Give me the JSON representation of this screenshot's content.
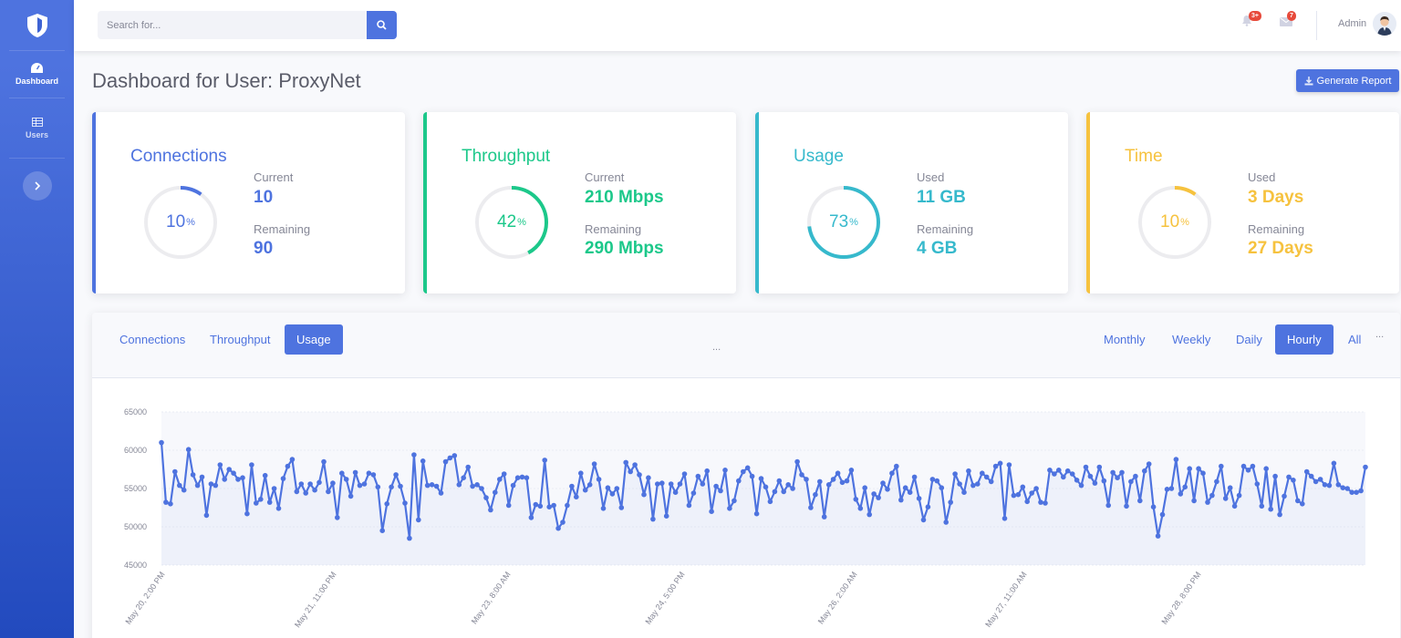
{
  "sidebar": {
    "items": [
      {
        "label": "Dashboard",
        "icon": "dashboard-icon"
      },
      {
        "label": "Users",
        "icon": "table-icon"
      }
    ]
  },
  "topbar": {
    "search_placeholder": "Search for...",
    "alerts_badge": "3+",
    "messages_badge": "7",
    "user_name": "Admin"
  },
  "page": {
    "title": "Dashboard for User: ProxyNet",
    "report_button": "Generate Report"
  },
  "cards": [
    {
      "title": "Connections",
      "percent": "10",
      "label1": "Current",
      "value1": "10",
      "label2": "Remaining",
      "value2": "90",
      "color": "#4e73df",
      "fraction": 0.1
    },
    {
      "title": "Throughput",
      "percent": "42",
      "label1": "Current",
      "value1": "210 Mbps",
      "label2": "Remaining",
      "value2": "290 Mbps",
      "color": "#1cc88a",
      "fraction": 0.42
    },
    {
      "title": "Usage",
      "percent": "73",
      "label1": "Used",
      "value1": "11 GB",
      "label2": "Remaining",
      "value2": "4 GB",
      "color": "#36b9cc",
      "fraction": 0.73
    },
    {
      "title": "Time",
      "percent": "10",
      "label1": "Used",
      "value1": "3 Days",
      "label2": "Remaining",
      "value2": "27 Days",
      "color": "#f6c23e",
      "fraction": 0.1
    }
  ],
  "chart_panel": {
    "tabs": [
      "Connections",
      "Throughput",
      "Usage"
    ],
    "active_tab": "Usage",
    "ranges": [
      "Monthly",
      "Weekly",
      "Daily",
      "Hourly",
      "All"
    ],
    "active_range": "Hourly",
    "center_dots": "...",
    "corner_dots": "..."
  },
  "chart_data": {
    "type": "area",
    "yticks": [
      "65000",
      "60000",
      "55000",
      "50000",
      "45000"
    ],
    "ylim": [
      45000,
      65000
    ],
    "xticks": [
      "May 20, 2:00 PM",
      "May 21, 11:00 PM",
      "May 23, 8:00 AM",
      "May 24, 5:00 PM",
      "May 26, 2:00 AM",
      "May 27, 11:00 AM",
      "May 28, 8:00 PM"
    ],
    "series": [
      {
        "color": "#4e73df",
        "values": [
          61000,
          53200,
          53000,
          57200,
          55400,
          54800,
          60100,
          56800,
          55400,
          56500,
          51500,
          55600,
          55400,
          58100,
          56200,
          57500,
          57000,
          56200,
          56400,
          51700,
          58100,
          53100,
          53600,
          56700,
          53200,
          55000,
          52400,
          56300,
          57900,
          58800,
          54600,
          55600,
          54400,
          55600,
          54800,
          55800,
          58500,
          54600,
          55700,
          51200,
          57000,
          56200,
          54000,
          57100,
          55400,
          55600,
          57000,
          56800,
          55200,
          49500,
          53000,
          55200,
          56800,
          55300,
          53100,
          48500,
          59400,
          50900,
          58600,
          55400,
          55500,
          55300,
          54400,
          58500,
          59000,
          59300,
          55500,
          56400,
          57800,
          55300,
          55500,
          55000,
          53800,
          52200,
          54500,
          56200,
          56900,
          52800,
          55400,
          56400,
          56500,
          56400,
          51200,
          52900,
          52700,
          58700,
          52600,
          52800,
          49800,
          50600,
          52800,
          55300,
          53900,
          57000,
          54800,
          55500,
          58200,
          56200,
          52400,
          55100,
          54300,
          55000,
          52500,
          58400,
          57200,
          58100,
          56800,
          54200,
          56400,
          51000,
          55600,
          55700,
          51400,
          55600,
          54500,
          55600,
          56900,
          52800,
          54400,
          56600,
          55600,
          57300,
          52000,
          55300,
          54700,
          57400,
          52400,
          53400,
          56000,
          57200,
          57700,
          56600,
          51700,
          56300,
          55200,
          53300,
          54600,
          56000,
          54600,
          55500,
          55000,
          58500,
          56800,
          56200,
          52500,
          54200,
          55900,
          51300,
          55500,
          56200,
          57000,
          55800,
          56000,
          57400,
          53600,
          52400,
          55100,
          51600,
          54300,
          53800,
          55700,
          54900,
          57000,
          57900,
          53500,
          55100,
          54500,
          56500,
          53700,
          50900,
          52600,
          56200,
          56000,
          55100,
          50600,
          53200,
          56900,
          55600,
          54500,
          57300,
          55400,
          55600,
          57000,
          56500,
          55900,
          57900,
          58300,
          51100,
          58100,
          54100,
          54200,
          55200,
          53300,
          54400,
          55000,
          53200,
          53100,
          57400,
          56900,
          57400,
          56500,
          57300,
          56900,
          56100,
          55400,
          57800,
          56600,
          55700,
          57800,
          56000,
          52800,
          57100,
          56400,
          57100,
          52700,
          55900,
          56600,
          53400,
          57300,
          58200,
          52600,
          48800,
          51600,
          54900,
          55000,
          58800,
          54300,
          55200,
          57600,
          53400,
          57600,
          57000,
          53200,
          54100,
          55900,
          57900,
          53700,
          55100,
          52700,
          54100,
          57900,
          57400,
          57900,
          55600,
          52700,
          57600,
          52300,
          56600,
          51600,
          54000,
          56500,
          56100,
          53400,
          53000,
          57200,
          56600,
          55900,
          56200,
          55500,
          55400,
          58300,
          55500,
          55100,
          55000,
          54500,
          54500,
          54700,
          57800
        ]
      }
    ]
  }
}
